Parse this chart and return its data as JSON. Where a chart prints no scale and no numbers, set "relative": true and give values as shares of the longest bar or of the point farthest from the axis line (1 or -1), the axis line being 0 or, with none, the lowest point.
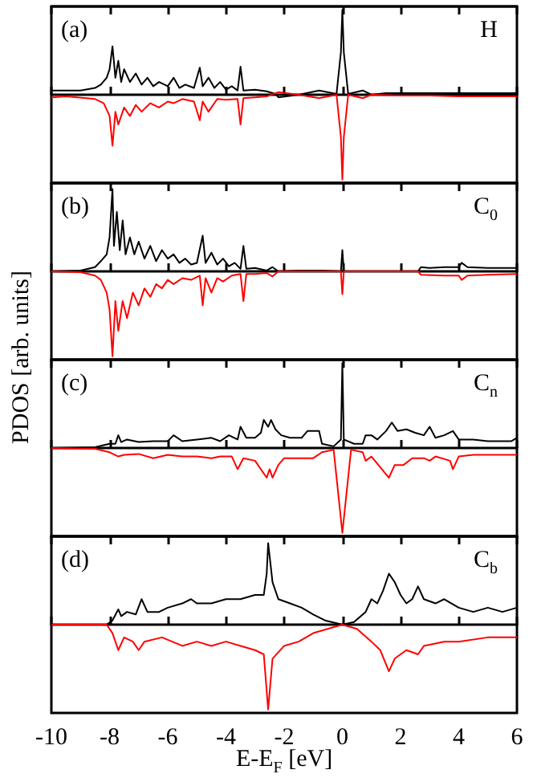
{
  "chart_data": [
    {
      "type": "line",
      "relative": true,
      "xlim": [
        -10,
        6
      ],
      "xticks": [
        -10,
        -8,
        -6,
        -4,
        -2,
        0,
        2,
        4,
        6
      ],
      "tick_labels": false,
      "ylabel": "PDOS [arb. units]",
      "annotations": [
        "(a)",
        "H"
      ],
      "series": [
        {
          "color": "#000000",
          "x": [
            -10,
            -9,
            -8.5,
            -8.3,
            -8.1,
            -8.0,
            -7.9,
            -7.8,
            -7.7,
            -7.6,
            -7.5,
            -7.3,
            -7.1,
            -6.9,
            -6.7,
            -6.5,
            -6.3,
            -6.0,
            -5.8,
            -5.6,
            -5.4,
            -5.1,
            -4.9,
            -4.8,
            -4.6,
            -4.4,
            -4.2,
            -4.0,
            -3.8,
            -3.6,
            -3.5,
            -3.4,
            -3.0,
            -2.6,
            -2.3,
            -2.2,
            -1.5,
            -0.8,
            -0.2,
            -0.05,
            0,
            0.05,
            0.2,
            0.7,
            1.0,
            1.5,
            2,
            3,
            4,
            5,
            6
          ],
          "values": [
            0.05,
            0.05,
            0.08,
            0.12,
            0.2,
            0.3,
            0.57,
            0.2,
            0.4,
            0.15,
            0.3,
            0.15,
            0.25,
            0.12,
            0.2,
            0.1,
            0.15,
            0.1,
            0.2,
            0.08,
            0.12,
            0.08,
            0.32,
            0.1,
            0.2,
            0.08,
            0.15,
            0.06,
            0.1,
            0.05,
            0.33,
            0.05,
            0.06,
            0.04,
            0.01,
            -0.03,
            0.0,
            0.05,
            0.01,
            0.5,
            1,
            0.5,
            0.01,
            0.05,
            0.0,
            0.02,
            0.02,
            0.02,
            0.02,
            0.02,
            0.02
          ]
        },
        {
          "color": "#ff0000",
          "x": [
            -10,
            -9.5,
            -8.5,
            -8.2,
            -8.0,
            -7.9,
            -7.8,
            -7.7,
            -7.5,
            -7.3,
            -7.1,
            -6.9,
            -6.6,
            -6.3,
            -6.0,
            -5.8,
            -5.5,
            -5.1,
            -4.9,
            -4.8,
            -4.6,
            -4.3,
            -4.0,
            -3.6,
            -3.5,
            -3.4,
            -3.0,
            -2.6,
            -2.2,
            -1.5,
            -0.8,
            -0.2,
            -0.05,
            0,
            0.05,
            0.2,
            0.7,
            1.0,
            2,
            3,
            4,
            5,
            6
          ],
          "values": [
            -0.03,
            -0.02,
            -0.05,
            -0.1,
            -0.25,
            -0.6,
            -0.2,
            -0.35,
            -0.15,
            -0.25,
            -0.12,
            -0.2,
            -0.1,
            -0.15,
            -0.08,
            -0.1,
            -0.05,
            -0.08,
            -0.3,
            -0.08,
            -0.2,
            -0.05,
            -0.06,
            -0.05,
            -0.35,
            -0.04,
            -0.03,
            -0.02,
            0.03,
            0.0,
            -0.04,
            0.0,
            -0.5,
            -1,
            -0.5,
            0.0,
            -0.04,
            0.0,
            -0.01,
            -0.01,
            -0.02,
            -0.02,
            -0.02
          ]
        }
      ]
    },
    {
      "type": "line",
      "relative": true,
      "xlim": [
        -10,
        6
      ],
      "xticks": [
        -10,
        -8,
        -6,
        -4,
        -2,
        0,
        2,
        4,
        6
      ],
      "tick_labels": false,
      "annotations": [
        "(b)",
        "C$_{0}$"
      ],
      "series": [
        {
          "color": "#000000",
          "x": [
            -10,
            -9,
            -8.5,
            -8.3,
            -8.1,
            -8.0,
            -7.9,
            -7.85,
            -7.75,
            -7.65,
            -7.55,
            -7.45,
            -7.3,
            -7.15,
            -7.0,
            -6.8,
            -6.6,
            -6.4,
            -6.2,
            -6.0,
            -5.8,
            -5.6,
            -5.4,
            -5.2,
            -5.0,
            -4.8,
            -4.7,
            -4.5,
            -4.3,
            -4.1,
            -3.9,
            -3.7,
            -3.5,
            -3.4,
            -3.3,
            -3.0,
            -2.6,
            -2.4,
            -2.2,
            -1.5,
            -0.7,
            -0.05,
            0,
            0.05,
            1,
            2.6,
            2.7,
            3,
            3.5,
            4.0,
            4.1,
            4.3,
            5,
            6
          ],
          "values": [
            0,
            0.01,
            0.05,
            0.12,
            0.2,
            0.4,
            0.97,
            0.3,
            0.7,
            0.25,
            0.6,
            0.2,
            0.4,
            0.2,
            0.35,
            0.15,
            0.3,
            0.12,
            0.25,
            0.15,
            0.2,
            0.1,
            0.15,
            0.08,
            0.1,
            0.42,
            0.1,
            0.22,
            0.08,
            0.15,
            0.06,
            0.1,
            0.03,
            0.3,
            0.03,
            0.04,
            0.01,
            0.05,
            0,
            0.01,
            0.01,
            0,
            0.25,
            0,
            0,
            0,
            0.05,
            0.04,
            0.05,
            0.05,
            0.1,
            0.05,
            0.04,
            0.04
          ]
        },
        {
          "color": "#ff0000",
          "x": [
            -10,
            -9,
            -8.5,
            -8.3,
            -8.1,
            -8.0,
            -7.9,
            -7.8,
            -7.7,
            -7.55,
            -7.4,
            -7.2,
            -7.0,
            -6.8,
            -6.6,
            -6.4,
            -6.2,
            -6.0,
            -5.8,
            -5.5,
            -5.2,
            -4.9,
            -4.8,
            -4.7,
            -4.5,
            -4.3,
            -4.1,
            -3.8,
            -3.5,
            -3.4,
            -3.3,
            -3.0,
            -2.6,
            -2.4,
            -2.2,
            -0.05,
            0,
            0.05,
            2.6,
            2.7,
            3.5,
            4.0,
            4.1,
            4.3,
            5,
            6
          ],
          "values": [
            0,
            -0.01,
            -0.05,
            -0.1,
            -0.25,
            -0.45,
            -1,
            -0.35,
            -0.7,
            -0.35,
            -0.55,
            -0.25,
            -0.4,
            -0.2,
            -0.3,
            -0.15,
            -0.2,
            -0.1,
            -0.15,
            -0.08,
            -0.1,
            -0.05,
            -0.4,
            -0.08,
            -0.25,
            -0.08,
            -0.12,
            -0.05,
            -0.03,
            -0.35,
            -0.03,
            -0.03,
            -0.02,
            -0.06,
            0,
            0,
            -0.27,
            0,
            0,
            -0.04,
            -0.05,
            -0.05,
            -0.1,
            -0.05,
            -0.04,
            -0.03
          ]
        }
      ]
    },
    {
      "type": "line",
      "relative": true,
      "xlim": [
        -10,
        6
      ],
      "xticks": [
        -10,
        -8,
        -6,
        -4,
        -2,
        0,
        2,
        4,
        6
      ],
      "tick_labels": false,
      "annotations": [
        "(c)",
        "C$_{n}$"
      ],
      "series": [
        {
          "color": "#000000",
          "x": [
            -10,
            -8.5,
            -8.0,
            -7.8,
            -7.7,
            -7.6,
            -7.4,
            -7.0,
            -6.5,
            -6.0,
            -5.8,
            -5.5,
            -5.0,
            -4.5,
            -4.2,
            -3.9,
            -3.6,
            -3.5,
            -3.3,
            -3.0,
            -2.8,
            -2.7,
            -2.55,
            -2.45,
            -2.3,
            -2.1,
            -1.8,
            -1.4,
            -1.2,
            -0.8,
            -0.7,
            -0.3,
            -0.05,
            0,
            0.05,
            0.4,
            0.7,
            0.8,
            1.0,
            1.2,
            1.5,
            1.7,
            1.9,
            2.2,
            2.5,
            2.8,
            3.0,
            3.2,
            3.5,
            3.8,
            4.0,
            4.5,
            5,
            5.5,
            5.8,
            6
          ],
          "values": [
            0,
            0.01,
            0.05,
            0.05,
            0.15,
            0.07,
            0.1,
            0.07,
            0.08,
            0.08,
            0.15,
            0.08,
            0.1,
            0.12,
            0.08,
            0.15,
            0.1,
            0.25,
            0.12,
            0.12,
            0.18,
            0.33,
            0.25,
            0.33,
            0.22,
            0.15,
            0.12,
            0.12,
            0.2,
            0.2,
            0.05,
            0.02,
            0.1,
            1,
            0.1,
            0.05,
            0.05,
            0.15,
            0.15,
            0.1,
            0.2,
            0.3,
            0.2,
            0.22,
            0.18,
            0.15,
            0.25,
            0.12,
            0.15,
            0.2,
            0.1,
            0.1,
            0.08,
            0.08,
            0.08,
            0.12
          ]
        },
        {
          "color": "#ff0000",
          "x": [
            -10,
            -8.5,
            -8.0,
            -7.7,
            -7.5,
            -7.0,
            -6.5,
            -6.0,
            -5.5,
            -5.0,
            -4.5,
            -4.2,
            -3.8,
            -3.6,
            -3.4,
            -3.0,
            -2.6,
            -2.5,
            -2.4,
            -2.2,
            -2.0,
            -1.5,
            -1.0,
            -0.7,
            -0.3,
            0,
            0.3,
            0.7,
            0.8,
            1.0,
            1.6,
            1.8,
            2.1,
            2.4,
            2.8,
            3.0,
            3.2,
            3.7,
            3.8,
            4.0,
            4.5,
            5,
            6
          ],
          "values": [
            0,
            -0.01,
            -0.05,
            -0.1,
            -0.08,
            -0.07,
            -0.12,
            -0.08,
            -0.1,
            -0.1,
            -0.12,
            -0.1,
            -0.1,
            -0.25,
            -0.12,
            -0.15,
            -0.35,
            -0.25,
            -0.35,
            -0.2,
            -0.12,
            -0.12,
            -0.12,
            -0.05,
            -0.02,
            -1,
            -0.02,
            -0.05,
            -0.15,
            -0.1,
            -0.35,
            -0.2,
            -0.2,
            -0.12,
            -0.12,
            -0.15,
            -0.1,
            -0.15,
            -0.25,
            -0.1,
            -0.08,
            -0.08,
            -0.08
          ]
        }
      ]
    },
    {
      "type": "line",
      "relative": true,
      "xlim": [
        -10,
        6
      ],
      "xticks": [
        -10,
        -8,
        -6,
        -4,
        -2,
        0,
        2,
        4,
        6
      ],
      "tick_labels": "x",
      "xlabel": "E-E$_{F}$ [eV]",
      "annotations": [
        "(d)",
        "C$_{b}$"
      ],
      "series": [
        {
          "color": "#000000",
          "x": [
            -10,
            -8.1,
            -7.9,
            -7.7,
            -7.6,
            -7.4,
            -7.1,
            -6.9,
            -6.7,
            -6.3,
            -6.0,
            -5.5,
            -5.2,
            -5.0,
            -4.5,
            -4.0,
            -3.5,
            -3.0,
            -2.7,
            -2.6,
            -2.55,
            -2.4,
            -2.2,
            -1.8,
            -1.4,
            -1.0,
            -0.6,
            0,
            0.4,
            0.8,
            1.0,
            1.2,
            1.4,
            1.6,
            1.8,
            2.0,
            2.2,
            2.4,
            2.6,
            2.8,
            3.2,
            3.5,
            4,
            4.5,
            5,
            5.5,
            6
          ],
          "values": [
            0,
            0,
            0.05,
            0.18,
            0.1,
            0.15,
            0.12,
            0.3,
            0.15,
            0.15,
            0.2,
            0.25,
            0.3,
            0.25,
            0.25,
            0.3,
            0.3,
            0.35,
            0.35,
            0.6,
            0.96,
            0.5,
            0.3,
            0.25,
            0.2,
            0.12,
            0.05,
            0.0,
            0.03,
            0.15,
            0.3,
            0.25,
            0.4,
            0.6,
            0.5,
            0.35,
            0.25,
            0.3,
            0.45,
            0.3,
            0.25,
            0.3,
            0.2,
            0.15,
            0.2,
            0.15,
            0.2
          ]
        },
        {
          "color": "#ff0000",
          "x": [
            -10,
            -8.1,
            -7.9,
            -7.7,
            -7.5,
            -7.2,
            -7.0,
            -6.8,
            -6.2,
            -5.5,
            -5,
            -4.5,
            -4,
            -3.5,
            -3,
            -2.7,
            -2.55,
            -2.4,
            -2.0,
            -1.5,
            -1.0,
            -0.5,
            0,
            0.5,
            1.0,
            1.3,
            1.6,
            1.8,
            2.2,
            2.6,
            2.8,
            3.5,
            4,
            5,
            6
          ],
          "values": [
            0,
            0,
            -0.1,
            -0.3,
            -0.15,
            -0.2,
            -0.3,
            -0.2,
            -0.15,
            -0.25,
            -0.2,
            -0.25,
            -0.2,
            -0.25,
            -0.3,
            -0.35,
            -1,
            -0.4,
            -0.25,
            -0.2,
            -0.1,
            -0.05,
            0,
            -0.05,
            -0.2,
            -0.3,
            -0.55,
            -0.4,
            -0.3,
            -0.35,
            -0.25,
            -0.2,
            -0.2,
            -0.15,
            -0.15
          ]
        }
      ]
    }
  ]
}
